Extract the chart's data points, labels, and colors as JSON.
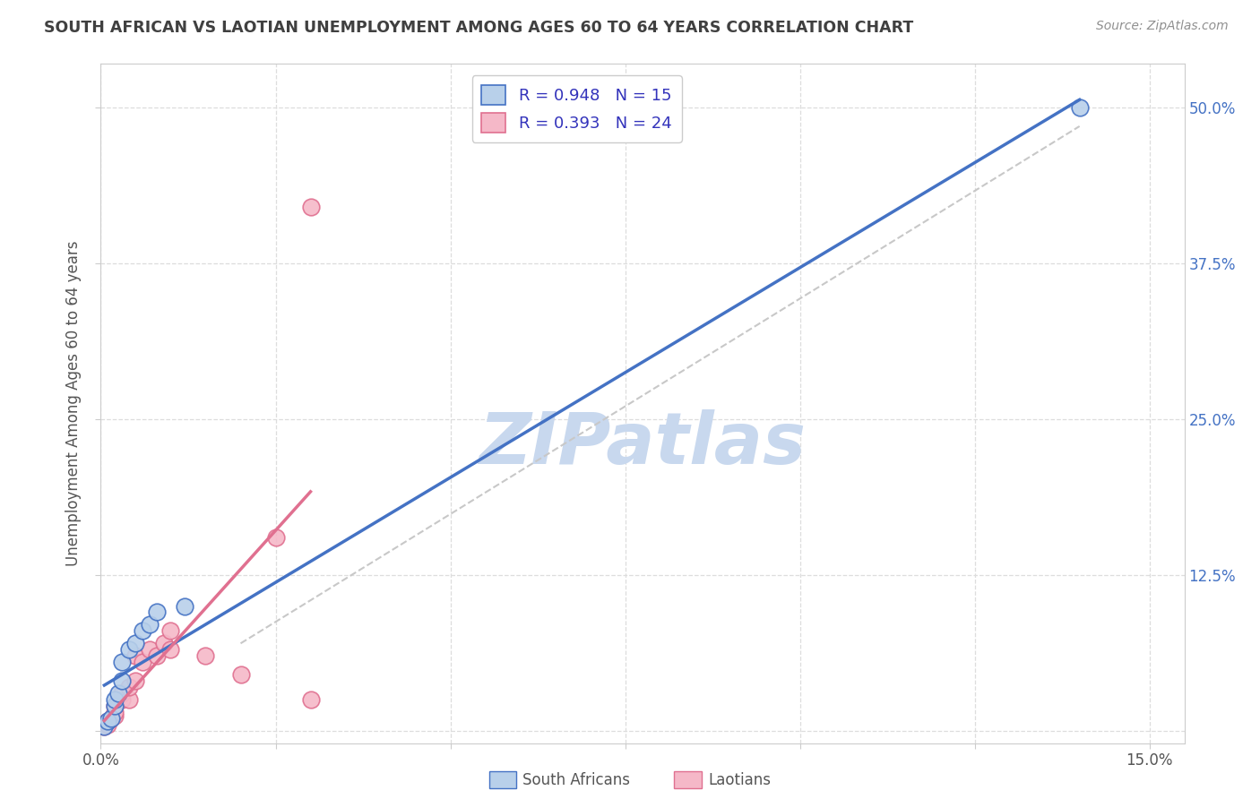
{
  "title": "SOUTH AFRICAN VS LAOTIAN UNEMPLOYMENT AMONG AGES 60 TO 64 YEARS CORRELATION CHART",
  "source": "Source: ZipAtlas.com",
  "ylabel": "Unemployment Among Ages 60 to 64 years",
  "xlim": [
    0.0,
    0.155
  ],
  "ylim": [
    -0.01,
    0.535
  ],
  "xticks": [
    0.0,
    0.025,
    0.05,
    0.075,
    0.1,
    0.125,
    0.15
  ],
  "xticklabels": [
    "0.0%",
    "",
    "",
    "",
    "",
    "",
    "15.0%"
  ],
  "ytick_positions": [
    0.0,
    0.125,
    0.25,
    0.375,
    0.5
  ],
  "yticklabels": [
    "",
    "12.5%",
    "25.0%",
    "37.5%",
    "50.0%"
  ],
  "south_african_x": [
    0.0005,
    0.001,
    0.0015,
    0.002,
    0.002,
    0.0025,
    0.003,
    0.003,
    0.004,
    0.005,
    0.006,
    0.007,
    0.008,
    0.012,
    0.14
  ],
  "south_african_y": [
    0.003,
    0.008,
    0.01,
    0.02,
    0.025,
    0.03,
    0.04,
    0.055,
    0.065,
    0.07,
    0.08,
    0.085,
    0.095,
    0.1,
    0.5
  ],
  "laotian_x": [
    0.0005,
    0.001,
    0.001,
    0.0015,
    0.002,
    0.002,
    0.002,
    0.003,
    0.003,
    0.004,
    0.004,
    0.005,
    0.005,
    0.006,
    0.007,
    0.008,
    0.009,
    0.01,
    0.01,
    0.015,
    0.02,
    0.025,
    0.03,
    0.03
  ],
  "laotian_y": [
    0.003,
    0.005,
    0.008,
    0.01,
    0.012,
    0.015,
    0.02,
    0.025,
    0.03,
    0.025,
    0.035,
    0.04,
    0.06,
    0.055,
    0.065,
    0.06,
    0.07,
    0.065,
    0.08,
    0.06,
    0.045,
    0.155,
    0.025,
    0.42
  ],
  "sa_line_x": [
    0.0005,
    0.14
  ],
  "sa_line_y": [
    0.003,
    0.5
  ],
  "la_line_x": [
    0.001,
    0.025
  ],
  "la_line_y": [
    0.01,
    0.15
  ],
  "ref_line_x": [
    0.02,
    0.14
  ],
  "ref_line_y": [
    0.07,
    0.485
  ],
  "R_south_african": 0.948,
  "N_south_african": 15,
  "R_laotian": 0.393,
  "N_laotian": 24,
  "south_african_color": "#b8d0ea",
  "laotian_color": "#f5b8c8",
  "south_african_line_color": "#4472c4",
  "laotian_line_color": "#e07090",
  "ref_line_color": "#c8c8c8",
  "legend_text_color": "#3333bb",
  "watermark_color": "#c8d8ee",
  "background_color": "#ffffff",
  "grid_color": "#dddddd",
  "title_color": "#404040",
  "source_color": "#909090",
  "axis_label_color": "#555555",
  "right_tick_color": "#4472c4"
}
